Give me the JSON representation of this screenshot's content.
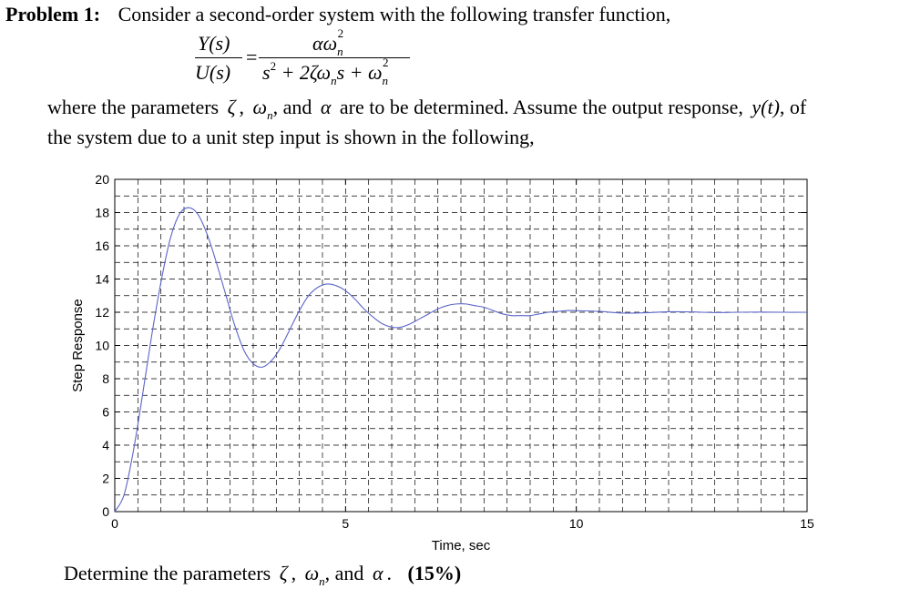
{
  "problem": {
    "label": "Problem 1:",
    "intro": "Consider a second-order system with the following transfer function,"
  },
  "equation": {
    "lhs_num": "Y(s)",
    "lhs_den": "U(s)",
    "equals": "=",
    "rhs_num_alpha": "α",
    "rhs_num_omega": "ω",
    "sub_n": "n",
    "sup_2": "2",
    "rhs_den_s": "s",
    "rhs_den_mid": "+ 2ζω",
    "rhs_den_s2": "s + ω"
  },
  "text": {
    "line2_a": "where the parameters",
    "zeta": "ζ",
    "comma": ",",
    "omega": "ω",
    "sub_n": "n",
    "line2_b": ", and",
    "alpha": "α",
    "line2_c": "are to be determined.  Assume the output response,",
    "yt": "y(t)",
    "line2_d": ", of",
    "line3": "the system due to a unit step input is shown in the following,",
    "final_a": "Determine the parameters",
    "final_b": ", and",
    "final_c": ".",
    "points": "(15%)"
  },
  "chart_data": {
    "type": "line",
    "xlabel": "Time, sec",
    "ylabel": "Step Response",
    "xlim": [
      0,
      15
    ],
    "ylim": [
      0,
      20
    ],
    "xticks": [
      0,
      5,
      10,
      15
    ],
    "yticks": [
      0,
      2,
      4,
      6,
      8,
      10,
      12,
      14,
      16,
      18,
      20
    ],
    "grid": true,
    "line_color": "#5b66c8",
    "series": [
      {
        "x": [
          0,
          0.2,
          0.4,
          0.6,
          0.8,
          1.0,
          1.2,
          1.4,
          1.6,
          1.8,
          2.0,
          2.2,
          2.4,
          2.6,
          2.8,
          3.0,
          3.2,
          3.4,
          3.6,
          3.8,
          4.0,
          4.2,
          4.4,
          4.6,
          4.8,
          5.0,
          5.2,
          5.4,
          5.6,
          5.8,
          6.0,
          6.2,
          6.4,
          6.6,
          6.8,
          7.0,
          7.2,
          7.4,
          7.6,
          7.8,
          8.0,
          8.2,
          8.4,
          8.6,
          8.8,
          9.0,
          9.2,
          9.4,
          9.6,
          9.8,
          10.0,
          10.5,
          11.0,
          11.5,
          12.0,
          12.5,
          13.0,
          13.5,
          14.0,
          14.5,
          15.0
        ],
        "y": [
          0,
          1.0,
          3.6,
          7.0,
          10.6,
          13.8,
          16.4,
          17.9,
          18.3,
          17.9,
          16.7,
          15.0,
          13.1,
          11.2,
          9.7,
          8.9,
          8.7,
          9.1,
          9.9,
          11.0,
          12.1,
          13.0,
          13.5,
          13.7,
          13.6,
          13.3,
          12.8,
          12.2,
          11.7,
          11.3,
          11.1,
          11.1,
          11.3,
          11.6,
          11.9,
          12.2,
          12.4,
          12.5,
          12.5,
          12.4,
          12.3,
          12.1,
          11.9,
          11.8,
          11.8,
          11.8,
          11.9,
          12.0,
          12.05,
          12.1,
          12.1,
          12.05,
          11.95,
          11.97,
          12.03,
          12.02,
          11.98,
          12.0,
          12.01,
          12.0,
          12.0
        ]
      }
    ]
  }
}
